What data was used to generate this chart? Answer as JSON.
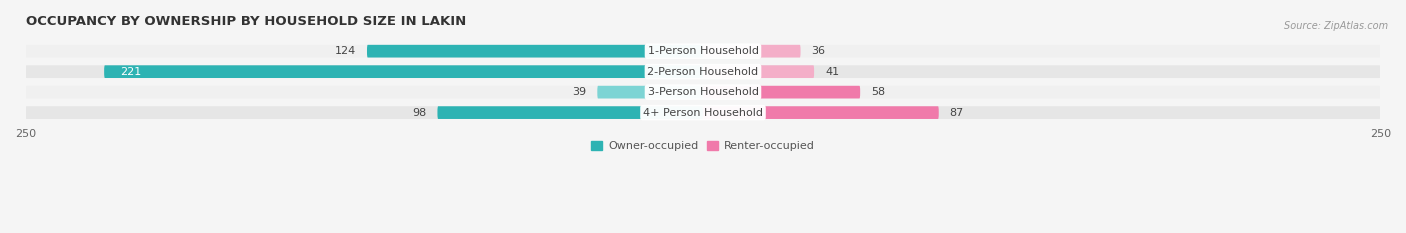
{
  "title": "OCCUPANCY BY OWNERSHIP BY HOUSEHOLD SIZE IN LAKIN",
  "source": "Source: ZipAtlas.com",
  "categories": [
    "1-Person Household",
    "2-Person Household",
    "3-Person Household",
    "4+ Person Household"
  ],
  "owner_values": [
    124,
    221,
    39,
    98
  ],
  "renter_values": [
    36,
    41,
    58,
    87
  ],
  "axis_max": 250,
  "owner_color_dark": "#2db3b3",
  "owner_color_light": "#7dd4d4",
  "renter_color": "#f07aaa",
  "renter_color_light": "#f4aec8",
  "row_bg_light": "#f0f0f0",
  "row_bg_dark": "#e6e6e6",
  "fig_bg": "#f5f5f5",
  "label_font_size": 8,
  "title_font_size": 9.5,
  "legend_font_size": 8,
  "value_label_fontsize": 8
}
